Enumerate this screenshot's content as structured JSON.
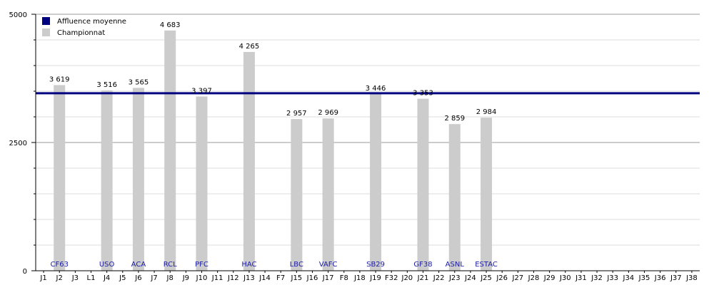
{
  "chart_data": {
    "type": "bar",
    "categories": [
      "J1",
      "J2",
      "J3",
      "L1",
      "J4",
      "J5",
      "J6",
      "J7",
      "J8",
      "J9",
      "J10",
      "J11",
      "J12",
      "J13",
      "J14",
      "F7",
      "J15",
      "J16",
      "J17",
      "F8",
      "J18",
      "J19",
      "F32",
      "J20",
      "J21",
      "J22",
      "J23",
      "J24",
      "J25",
      "J26",
      "J27",
      "J28",
      "J29",
      "J30",
      "J31",
      "J32",
      "J33",
      "J34",
      "J35",
      "J36",
      "J37",
      "J38"
    ],
    "series": [
      {
        "name": "Championnat",
        "values": [
          null,
          3619,
          null,
          null,
          3516,
          null,
          3565,
          null,
          4683,
          null,
          3397,
          null,
          null,
          4265,
          null,
          null,
          2957,
          null,
          2969,
          null,
          null,
          3446,
          null,
          null,
          3353,
          null,
          2859,
          null,
          2984,
          null,
          null,
          null,
          null,
          null,
          null,
          null,
          null,
          null,
          null,
          null,
          null,
          null
        ],
        "value_labels": [
          null,
          "3 619",
          null,
          null,
          "3 516",
          null,
          "3 565",
          null,
          "4 683",
          null,
          "3 397",
          null,
          null,
          "4 265",
          null,
          null,
          "2 957",
          null,
          "2 969",
          null,
          null,
          "3 446",
          null,
          null,
          "3 353",
          null,
          "2 859",
          null,
          "2 984",
          null,
          null,
          null,
          null,
          null,
          null,
          null,
          null,
          null,
          null,
          null,
          null,
          null
        ],
        "color": "#cccccc"
      }
    ],
    "opponents": [
      null,
      "CF63",
      null,
      null,
      "USO",
      null,
      "ACA",
      null,
      "RCL",
      null,
      "PFC",
      null,
      null,
      "HAC",
      null,
      null,
      "LBC",
      null,
      "VAFC",
      null,
      null,
      "SB29",
      null,
      null,
      "GF38",
      null,
      "ASNL",
      null,
      "ESTAC",
      null,
      null,
      null,
      null,
      null,
      null,
      null,
      null,
      null,
      null,
      null,
      null,
      null
    ],
    "average": {
      "name": "Affluence moyenne",
      "value": 3460,
      "color": "#000080"
    },
    "ylim": [
      0,
      5000
    ],
    "yticks": [
      0,
      2500,
      5000
    ],
    "grid": true,
    "legend_position": "top-left",
    "label_color": "#1a1aa6",
    "title": "",
    "xlabel": "",
    "ylabel": ""
  }
}
